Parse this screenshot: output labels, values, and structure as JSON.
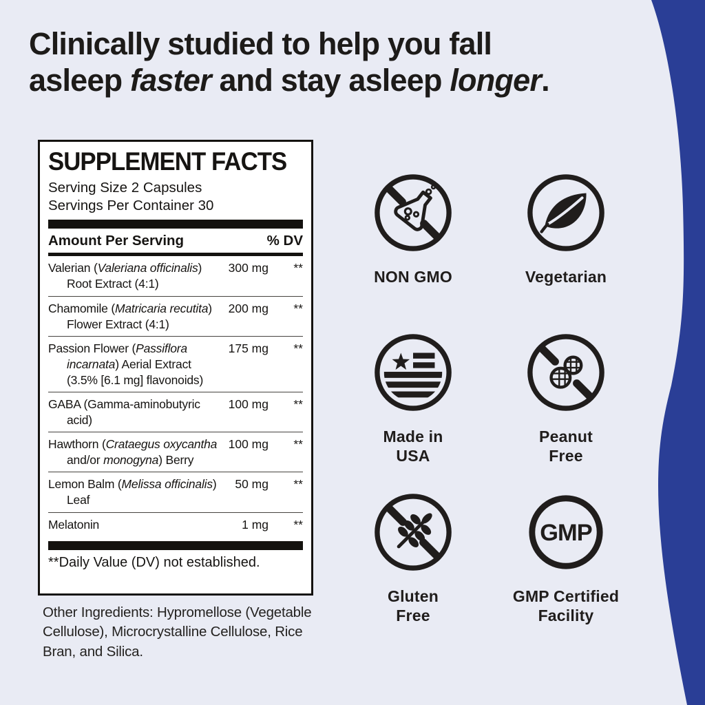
{
  "headline": {
    "line1": "Clinically studied to help you fall",
    "line2": "asleep *faster* and stay asleep *longer*."
  },
  "panel": {
    "title": "SUPPLEMENT FACTS",
    "serving_size": "Serving Size 2 Capsules",
    "servings_per_container": "Servings Per Container 30",
    "columns": {
      "amount": "Amount Per Serving",
      "dv": "% DV"
    },
    "rows": [
      {
        "name": "Valerian (*Valeriana officinalis*)\nRoot Extract (4:1)",
        "amount": "300 mg",
        "dv": "**"
      },
      {
        "name": "Chamomile (*Matricaria recutita*)\nFlower Extract (4:1)",
        "amount": "200 mg",
        "dv": "**"
      },
      {
        "name": "Passion Flower (*Passiflora*\n*incarnata*) Aerial Extract\n(3.5% [6.1 mg] flavonoids)",
        "amount": "175 mg",
        "dv": "**"
      },
      {
        "name": "GABA (Gamma-aminobutyric\nacid)",
        "amount": "100 mg",
        "dv": "**"
      },
      {
        "name": "Hawthorn (*Crataegus oxycantha*\nand/or *monogyna*) Berry",
        "amount": "100 mg",
        "dv": "**"
      },
      {
        "name": "Lemon Balm (*Melissa officinalis*)\nLeaf",
        "amount": "50 mg",
        "dv": "**"
      },
      {
        "name": "Melatonin",
        "amount": "1 mg",
        "dv": "**"
      }
    ],
    "footnote": "**Daily Value (DV) not established."
  },
  "other_ingredients": "Other Ingredients: Hypromellose (Vegetable Cellulose), Microcrystalline Cellulose, Rice Bran, and Silica.",
  "badges": [
    {
      "icon": "no-flask-icon",
      "label": "NON GMO"
    },
    {
      "icon": "leaf-icon",
      "label": "Vegetarian"
    },
    {
      "icon": "usa-flag-icon",
      "label": "Made in\nUSA"
    },
    {
      "icon": "no-peanut-icon",
      "label": "Peanut\nFree"
    },
    {
      "icon": "no-wheat-icon",
      "label": "Gluten\nFree"
    },
    {
      "icon": "gmp-icon",
      "label": "GMP Certified\nFacility",
      "icon_text": "GMP"
    }
  ],
  "colors": {
    "background": "#e9ebf4",
    "accent_navy": "#2a3e96",
    "text": "#1d1b19",
    "panel_border": "#14120f"
  }
}
